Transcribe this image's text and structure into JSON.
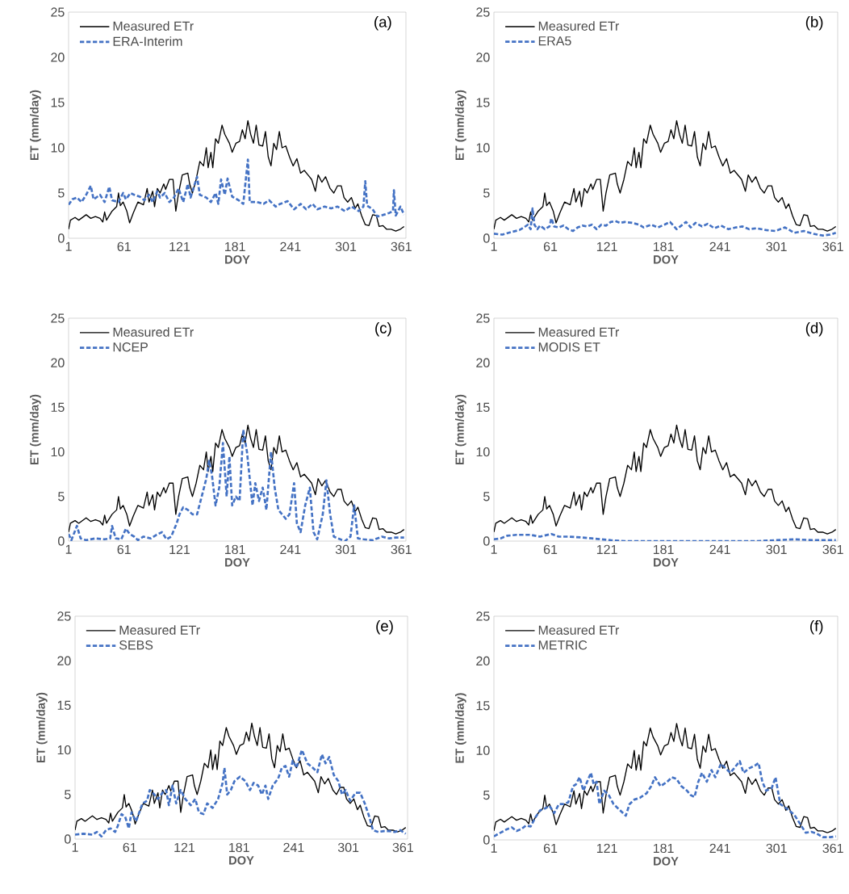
{
  "chart_data": [
    {
      "type": "line",
      "title": "(a)",
      "xlabel": "DOY",
      "ylabel": "ET (mm/day)",
      "xlim": [
        1,
        366
      ],
      "xticks": [
        1,
        61,
        121,
        181,
        241,
        301,
        361
      ],
      "ylim": [
        0,
        25
      ],
      "yticks": [
        0,
        5,
        10,
        15,
        20,
        25
      ],
      "legend": "top left",
      "series": [
        {
          "name": "Measured ETr",
          "color": "#000000",
          "line_style": "solid",
          "x": [
            1,
            3,
            8,
            12,
            20,
            25,
            30,
            35,
            38,
            40,
            42,
            48,
            53,
            55,
            57,
            60,
            64,
            67,
            71,
            76,
            82,
            86,
            88,
            92,
            94,
            97,
            100,
            104,
            106,
            110,
            114,
            117,
            120,
            124,
            130,
            132,
            135,
            139,
            143,
            147,
            150,
            152,
            155,
            157,
            160,
            163,
            167,
            170,
            175,
            178,
            182,
            186,
            189,
            192,
            195,
            198,
            201,
            204,
            207,
            211,
            214,
            217,
            220,
            223,
            226,
            229,
            232,
            236,
            240,
            244,
            248,
            252,
            256,
            260,
            264,
            268,
            271,
            275,
            279,
            284,
            288,
            292,
            296,
            299,
            303,
            307,
            311,
            314,
            318,
            322,
            326,
            330,
            334,
            337,
            341,
            345,
            350,
            355,
            360,
            364
          ],
          "values": [
            1.0,
            2.0,
            2.3,
            2.0,
            2.6,
            2.2,
            2.4,
            2.2,
            1.8,
            2.9,
            2.0,
            3.0,
            3.5,
            5.0,
            3.6,
            4.0,
            3.0,
            1.7,
            2.8,
            4.0,
            3.7,
            5.5,
            4.0,
            5.2,
            3.5,
            5.5,
            5.0,
            6.0,
            5.4,
            6.5,
            6.5,
            3.0,
            5.0,
            7.0,
            7.2,
            6.0,
            5.0,
            6.5,
            8.5,
            8.0,
            10.0,
            7.8,
            9.5,
            7.8,
            11.0,
            10.5,
            12.5,
            11.5,
            10.5,
            9.5,
            10.5,
            10.7,
            12.0,
            11.0,
            13.0,
            11.5,
            10.5,
            12.5,
            10.3,
            10.2,
            11.8,
            9.0,
            8.0,
            10.5,
            9.8,
            11.8,
            10.0,
            10.2,
            9.0,
            8.0,
            8.8,
            7.2,
            7.5,
            7.0,
            6.5,
            5.2,
            7.0,
            6.2,
            6.8,
            5.5,
            5.0,
            5.8,
            5.8,
            4.5,
            4.0,
            4.5,
            3.3,
            3.8,
            2.5,
            1.5,
            1.4,
            2.6,
            2.5,
            1.3,
            1.4,
            1.0,
            1.0,
            0.8,
            1.0,
            1.3
          ]
        },
        {
          "name": "ERA-Interim",
          "color": "#4472c4",
          "line_style": "dashed",
          "x": [
            1,
            5,
            10,
            15,
            20,
            25,
            28,
            35,
            40,
            45,
            48,
            55,
            60,
            63,
            68,
            72,
            78,
            83,
            88,
            92,
            97,
            100,
            105,
            110,
            115,
            120,
            125,
            130,
            133,
            140,
            143,
            150,
            155,
            160,
            163,
            166,
            170,
            173,
            178,
            185,
            190,
            195,
            197,
            205,
            212,
            218,
            225,
            230,
            238,
            245,
            252,
            258,
            265,
            270,
            278,
            285,
            292,
            300,
            307,
            315,
            320,
            322,
            324,
            330,
            335,
            342,
            348,
            352,
            353,
            355,
            360,
            364
          ],
          "values": [
            3.7,
            4.3,
            4.5,
            4.0,
            4.8,
            5.8,
            4.3,
            4.8,
            4.0,
            5.7,
            4.2,
            4.0,
            5.0,
            4.3,
            5.0,
            4.8,
            4.6,
            4.2,
            4.8,
            4.0,
            5.2,
            4.5,
            5.0,
            4.0,
            4.5,
            5.5,
            4.0,
            6.0,
            4.5,
            6.8,
            4.8,
            4.5,
            4.0,
            5.0,
            3.8,
            6.5,
            4.8,
            6.6,
            4.6,
            4.2,
            3.8,
            8.7,
            4.0,
            4.0,
            3.8,
            4.2,
            3.5,
            3.8,
            4.1,
            3.2,
            3.8,
            3.2,
            3.8,
            3.2,
            3.5,
            3.3,
            3.5,
            3.0,
            3.5,
            3.0,
            3.5,
            6.3,
            3.6,
            3.2,
            2.4,
            2.6,
            2.8,
            3.0,
            5.3,
            2.5,
            3.5,
            2.6
          ]
        }
      ]
    },
    {
      "type": "line",
      "title": "(b)",
      "xlabel": "DOY",
      "ylabel": "ET (mm/day)",
      "xlim": [
        1,
        366
      ],
      "xticks": [
        1,
        61,
        121,
        181,
        241,
        301,
        361
      ],
      "ylim": [
        0,
        25
      ],
      "yticks": [
        0,
        5,
        10,
        15,
        20,
        25
      ],
      "legend": "top left",
      "series": [
        {
          "name": "Measured ETr",
          "color": "#000000",
          "line_style": "solid",
          "x": [
            1,
            3,
            8,
            12,
            20,
            25,
            30,
            35,
            38,
            40,
            42,
            48,
            53,
            55,
            57,
            60,
            64,
            67,
            71,
            76,
            82,
            86,
            88,
            92,
            94,
            97,
            100,
            104,
            106,
            110,
            114,
            117,
            120,
            124,
            130,
            132,
            135,
            139,
            143,
            147,
            150,
            152,
            155,
            157,
            160,
            163,
            167,
            170,
            175,
            178,
            182,
            186,
            189,
            192,
            195,
            198,
            201,
            204,
            207,
            211,
            214,
            217,
            220,
            223,
            226,
            229,
            232,
            236,
            240,
            244,
            248,
            252,
            256,
            260,
            264,
            268,
            271,
            275,
            279,
            284,
            288,
            292,
            296,
            299,
            303,
            307,
            311,
            314,
            318,
            322,
            326,
            330,
            334,
            337,
            341,
            345,
            350,
            355,
            360,
            364
          ],
          "values": [
            1.0,
            2.0,
            2.3,
            2.0,
            2.6,
            2.2,
            2.4,
            2.2,
            1.8,
            2.9,
            2.0,
            3.0,
            3.5,
            5.0,
            3.6,
            4.0,
            3.0,
            1.7,
            2.8,
            4.0,
            3.7,
            5.5,
            4.0,
            5.2,
            3.5,
            5.5,
            5.0,
            6.0,
            5.4,
            6.5,
            6.5,
            3.0,
            5.0,
            7.0,
            7.2,
            6.0,
            5.0,
            6.5,
            8.5,
            8.0,
            10.0,
            7.8,
            9.5,
            7.8,
            11.0,
            10.5,
            12.5,
            11.5,
            10.5,
            9.5,
            10.5,
            10.7,
            12.0,
            11.0,
            13.0,
            11.5,
            10.5,
            12.5,
            10.3,
            10.2,
            11.8,
            9.0,
            8.0,
            10.5,
            9.8,
            11.8,
            10.0,
            10.2,
            9.0,
            8.0,
            8.8,
            7.2,
            7.5,
            7.0,
            6.5,
            5.2,
            7.0,
            6.2,
            6.8,
            5.5,
            5.0,
            5.8,
            5.8,
            4.5,
            4.0,
            4.5,
            3.3,
            3.8,
            2.5,
            1.5,
            1.4,
            2.6,
            2.5,
            1.3,
            1.4,
            1.0,
            1.0,
            0.8,
            1.0,
            1.3
          ]
        },
        {
          "name": "ERA5",
          "color": "#4472c4",
          "line_style": "dashed",
          "x": [
            1,
            10,
            20,
            28,
            33,
            37,
            40,
            42,
            44,
            47,
            50,
            55,
            60,
            62,
            65,
            70,
            75,
            80,
            85,
            90,
            95,
            100,
            105,
            110,
            115,
            120,
            125,
            130,
            135,
            140,
            148,
            155,
            160,
            168,
            175,
            182,
            188,
            195,
            200,
            205,
            210,
            215,
            222,
            228,
            235,
            242,
            250,
            258,
            265,
            272,
            280,
            290,
            300,
            310,
            320,
            330,
            340,
            350,
            358,
            364
          ],
          "values": [
            0.5,
            0.4,
            0.7,
            0.9,
            1.2,
            1.5,
            1.0,
            3.3,
            1.5,
            1.0,
            1.4,
            1.0,
            1.3,
            2.2,
            1.3,
            1.2,
            1.4,
            1.0,
            0.8,
            1.2,
            1.4,
            1.3,
            1.5,
            1.0,
            1.5,
            1.4,
            1.8,
            1.9,
            1.7,
            1.8,
            1.7,
            1.5,
            1.2,
            1.5,
            1.2,
            1.5,
            1.8,
            1.0,
            1.4,
            1.8,
            1.2,
            1.7,
            1.3,
            1.6,
            1.1,
            1.4,
            1.0,
            1.2,
            1.3,
            1.0,
            1.1,
            0.9,
            0.8,
            1.2,
            0.6,
            0.8,
            0.5,
            0.3,
            0.4,
            0.6
          ]
        }
      ]
    },
    {
      "type": "line",
      "title": "(c)",
      "xlabel": "DOY",
      "ylabel": "ET (mm/day)",
      "xlim": [
        1,
        366
      ],
      "xticks": [
        1,
        61,
        121,
        181,
        241,
        301,
        361
      ],
      "ylim": [
        0,
        25
      ],
      "yticks": [
        0,
        5,
        10,
        15,
        20,
        25
      ],
      "legend": "top left",
      "series": [
        {
          "name": "Measured ETr",
          "color": "#000000",
          "line_style": "solid",
          "x": [
            1,
            3,
            8,
            12,
            20,
            25,
            30,
            35,
            38,
            40,
            42,
            48,
            53,
            55,
            57,
            60,
            64,
            67,
            71,
            76,
            82,
            86,
            88,
            92,
            94,
            97,
            100,
            104,
            106,
            110,
            114,
            117,
            120,
            124,
            130,
            132,
            135,
            139,
            143,
            147,
            150,
            152,
            155,
            157,
            160,
            163,
            167,
            170,
            175,
            178,
            182,
            186,
            189,
            192,
            195,
            198,
            201,
            204,
            207,
            211,
            214,
            217,
            220,
            223,
            226,
            229,
            232,
            236,
            240,
            244,
            248,
            252,
            256,
            260,
            264,
            268,
            271,
            275,
            279,
            284,
            288,
            292,
            296,
            299,
            303,
            307,
            311,
            314,
            318,
            322,
            326,
            330,
            334,
            337,
            341,
            345,
            350,
            355,
            360,
            364
          ],
          "values": [
            1.0,
            2.0,
            2.3,
            2.0,
            2.6,
            2.2,
            2.4,
            2.2,
            1.8,
            2.9,
            2.0,
            3.0,
            3.5,
            5.0,
            3.6,
            4.0,
            3.0,
            1.7,
            2.8,
            4.0,
            3.7,
            5.5,
            4.0,
            5.2,
            3.5,
            5.5,
            5.0,
            6.0,
            5.4,
            6.5,
            6.5,
            3.0,
            5.0,
            7.0,
            7.2,
            6.0,
            5.0,
            6.5,
            8.5,
            8.0,
            10.0,
            7.8,
            9.5,
            7.8,
            11.0,
            10.5,
            12.5,
            11.5,
            10.5,
            9.5,
            10.5,
            10.7,
            12.0,
            11.0,
            13.0,
            11.5,
            10.5,
            12.5,
            10.3,
            10.2,
            11.8,
            9.0,
            8.0,
            10.5,
            9.8,
            11.8,
            10.0,
            10.2,
            9.0,
            8.0,
            8.8,
            7.2,
            7.5,
            7.0,
            6.5,
            5.2,
            7.0,
            6.2,
            6.8,
            5.5,
            5.0,
            5.8,
            5.8,
            4.5,
            4.0,
            4.5,
            3.3,
            3.8,
            2.5,
            1.5,
            1.4,
            2.6,
            2.5,
            1.3,
            1.4,
            1.0,
            1.0,
            0.8,
            1.0,
            1.3
          ]
        },
        {
          "name": "NCEP",
          "color": "#4472c4",
          "line_style": "dashed",
          "x": [
            1,
            4,
            10,
            14,
            20,
            30,
            40,
            46,
            48,
            52,
            58,
            63,
            67,
            72,
            76,
            82,
            90,
            96,
            102,
            107,
            112,
            118,
            121,
            125,
            130,
            135,
            140,
            145,
            150,
            153,
            156,
            160,
            164,
            168,
            172,
            175,
            178,
            182,
            186,
            190,
            194,
            197,
            200,
            203,
            207,
            211,
            215,
            220,
            224,
            228,
            232,
            236,
            240,
            245,
            248,
            252,
            257,
            262,
            266,
            270,
            276,
            280,
            284,
            288,
            295,
            300,
            306,
            310,
            314,
            320,
            330,
            340,
            348,
            355,
            364
          ],
          "values": [
            0.8,
            0.1,
            1.7,
            0.3,
            0.1,
            0.3,
            0.2,
            0.3,
            1.7,
            0.3,
            0.2,
            1.4,
            0.8,
            0.5,
            0.1,
            0.5,
            0.3,
            0.7,
            1.0,
            0.2,
            0.5,
            2.0,
            3.0,
            3.8,
            3.5,
            3.0,
            3.0,
            5.0,
            7.0,
            9.0,
            7.5,
            4.0,
            6.0,
            11.0,
            5.0,
            9.5,
            4.0,
            5.0,
            4.5,
            12.5,
            10.0,
            7.0,
            4.0,
            6.5,
            4.5,
            6.0,
            3.5,
            10.0,
            6.0,
            3.5,
            3.0,
            2.5,
            3.0,
            6.5,
            2.0,
            1.0,
            4.0,
            6.0,
            1.0,
            0.2,
            3.0,
            6.8,
            3.0,
            0.5,
            0.2,
            0.0,
            0.5,
            4.0,
            0.3,
            0.2,
            0.1,
            0.5,
            0.3,
            0.4,
            0.4
          ]
        }
      ]
    },
    {
      "type": "line",
      "title": "(d)",
      "xlabel": "DOY",
      "ylabel": "ET (mm/day)",
      "xlim": [
        1,
        366
      ],
      "xticks": [
        1,
        61,
        121,
        181,
        241,
        301,
        361
      ],
      "ylim": [
        0,
        25
      ],
      "yticks": [
        0,
        5,
        10,
        15,
        20,
        25
      ],
      "legend": "top left",
      "series": [
        {
          "name": "Measured ETr",
          "color": "#000000",
          "line_style": "solid",
          "x": [
            1,
            3,
            8,
            12,
            20,
            25,
            30,
            35,
            38,
            40,
            42,
            48,
            53,
            55,
            57,
            60,
            64,
            67,
            71,
            76,
            82,
            86,
            88,
            92,
            94,
            97,
            100,
            104,
            106,
            110,
            114,
            117,
            120,
            124,
            130,
            132,
            135,
            139,
            143,
            147,
            150,
            152,
            155,
            157,
            160,
            163,
            167,
            170,
            175,
            178,
            182,
            186,
            189,
            192,
            195,
            198,
            201,
            204,
            207,
            211,
            214,
            217,
            220,
            223,
            226,
            229,
            232,
            236,
            240,
            244,
            248,
            252,
            256,
            260,
            264,
            268,
            271,
            275,
            279,
            284,
            288,
            292,
            296,
            299,
            303,
            307,
            311,
            314,
            318,
            322,
            326,
            330,
            334,
            337,
            341,
            345,
            350,
            355,
            360,
            364
          ],
          "values": [
            1.0,
            2.0,
            2.3,
            2.0,
            2.6,
            2.2,
            2.4,
            2.2,
            1.8,
            2.9,
            2.0,
            3.0,
            3.5,
            5.0,
            3.6,
            4.0,
            3.0,
            1.7,
            2.8,
            4.0,
            3.7,
            5.5,
            4.0,
            5.2,
            3.5,
            5.5,
            5.0,
            6.0,
            5.4,
            6.5,
            6.5,
            3.0,
            5.0,
            7.0,
            7.2,
            6.0,
            5.0,
            6.5,
            8.5,
            8.0,
            10.0,
            7.8,
            9.5,
            7.8,
            11.0,
            10.5,
            12.5,
            11.5,
            10.5,
            9.5,
            10.5,
            10.7,
            12.0,
            11.0,
            13.0,
            11.5,
            10.5,
            12.5,
            10.3,
            10.2,
            11.8,
            9.0,
            8.0,
            10.5,
            9.8,
            11.8,
            10.0,
            10.2,
            9.0,
            8.0,
            8.8,
            7.2,
            7.5,
            7.0,
            6.5,
            5.2,
            7.0,
            6.2,
            6.8,
            5.5,
            5.0,
            5.8,
            5.8,
            4.5,
            4.0,
            4.5,
            3.3,
            3.8,
            2.5,
            1.5,
            1.4,
            2.6,
            2.5,
            1.3,
            1.4,
            1.0,
            1.0,
            0.8,
            1.0,
            1.3
          ]
        },
        {
          "name": "MODIS ET",
          "color": "#4472c4",
          "line_style": "dashed",
          "x": [
            1,
            8,
            15,
            25,
            40,
            50,
            62,
            70,
            80,
            95,
            105,
            115,
            125,
            140,
            160,
            200,
            240,
            280,
            300,
            320,
            340,
            364
          ],
          "values": [
            0.2,
            0.3,
            0.6,
            0.7,
            0.7,
            0.5,
            0.8,
            0.5,
            0.5,
            0.4,
            0.3,
            0.2,
            0.1,
            0.0,
            0.0,
            0.0,
            0.0,
            0.0,
            0.1,
            0.2,
            0.1,
            0.1
          ]
        }
      ]
    },
    {
      "type": "line",
      "title": "(e)",
      "xlabel": "DOY",
      "ylabel": "ET (mm/day)",
      "xlim": [
        1,
        366
      ],
      "xticks": [
        1,
        61,
        121,
        181,
        241,
        301,
        361
      ],
      "ylim": [
        0,
        25
      ],
      "yticks": [
        0,
        5,
        10,
        15,
        20,
        25
      ],
      "legend": "top left",
      "series": [
        {
          "name": "Measured ETr",
          "color": "#000000",
          "line_style": "solid",
          "x": [
            1,
            3,
            8,
            12,
            20,
            25,
            30,
            35,
            38,
            40,
            42,
            48,
            53,
            55,
            57,
            60,
            64,
            67,
            71,
            76,
            82,
            86,
            88,
            92,
            94,
            97,
            100,
            104,
            106,
            110,
            114,
            117,
            120,
            124,
            130,
            132,
            135,
            139,
            143,
            147,
            150,
            152,
            155,
            157,
            160,
            163,
            167,
            170,
            175,
            178,
            182,
            186,
            189,
            192,
            195,
            198,
            201,
            204,
            207,
            211,
            214,
            217,
            220,
            223,
            226,
            229,
            232,
            236,
            240,
            244,
            248,
            252,
            256,
            260,
            264,
            268,
            271,
            275,
            279,
            284,
            288,
            292,
            296,
            299,
            303,
            307,
            311,
            314,
            318,
            322,
            326,
            330,
            334,
            337,
            341,
            345,
            350,
            355,
            360,
            364
          ],
          "values": [
            1.0,
            2.0,
            2.3,
            2.0,
            2.6,
            2.2,
            2.4,
            2.2,
            1.8,
            2.9,
            2.0,
            3.0,
            3.5,
            5.0,
            3.6,
            4.0,
            3.0,
            1.7,
            2.8,
            4.0,
            3.7,
            5.5,
            4.0,
            5.2,
            3.5,
            5.5,
            5.0,
            6.0,
            5.4,
            6.5,
            6.5,
            3.0,
            5.0,
            7.0,
            7.2,
            6.0,
            5.0,
            6.5,
            8.5,
            8.0,
            10.0,
            7.8,
            9.5,
            7.8,
            11.0,
            10.5,
            12.5,
            11.5,
            10.5,
            9.5,
            10.5,
            10.7,
            12.0,
            11.0,
            13.0,
            11.5,
            10.5,
            12.5,
            10.3,
            10.2,
            11.8,
            9.0,
            8.0,
            10.5,
            9.8,
            11.8,
            10.0,
            10.2,
            9.0,
            8.0,
            8.8,
            7.2,
            7.5,
            7.0,
            6.5,
            5.2,
            7.0,
            6.2,
            6.8,
            5.5,
            5.0,
            5.8,
            5.8,
            4.5,
            4.0,
            4.5,
            3.3,
            3.8,
            2.5,
            1.5,
            1.4,
            2.6,
            2.5,
            1.3,
            1.4,
            1.0,
            1.0,
            0.8,
            1.0,
            1.3
          ]
        },
        {
          "name": "SEBS",
          "color": "#4472c4",
          "line_style": "dashed",
          "x": [
            1,
            10,
            20,
            25,
            30,
            35,
            40,
            45,
            48,
            52,
            56,
            60,
            63,
            68,
            75,
            80,
            83,
            88,
            92,
            97,
            101,
            104,
            108,
            112,
            117,
            122,
            128,
            133,
            137,
            142,
            146,
            152,
            158,
            163,
            165,
            168,
            172,
            176,
            182,
            188,
            193,
            197,
            202,
            206,
            210,
            213,
            218,
            224,
            228,
            232,
            236,
            240,
            244,
            250,
            256,
            262,
            267,
            272,
            276,
            280,
            285,
            290,
            294,
            298,
            303,
            309,
            314,
            319,
            324,
            328,
            334,
            340,
            346,
            352,
            358,
            364
          ],
          "values": [
            0.5,
            0.6,
            0.5,
            0.8,
            0.3,
            1.0,
            1.2,
            0.8,
            1.5,
            2.8,
            2.5,
            1.2,
            3.0,
            2.0,
            4.0,
            4.3,
            5.5,
            5.0,
            4.5,
            5.2,
            5.5,
            3.8,
            6.0,
            4.0,
            5.5,
            4.5,
            3.8,
            4.5,
            3.0,
            2.8,
            4.0,
            3.5,
            4.5,
            6.3,
            8.0,
            5.0,
            5.5,
            6.5,
            7.0,
            6.5,
            5.5,
            6.3,
            6.0,
            5.0,
            6.0,
            4.5,
            6.0,
            6.8,
            8.0,
            8.2,
            7.0,
            8.8,
            8.0,
            10.0,
            8.5,
            8.0,
            7.5,
            9.5,
            8.5,
            9.2,
            7.2,
            6.5,
            5.0,
            5.5,
            4.3,
            5.2,
            5.2,
            4.0,
            2.5,
            1.0,
            0.8,
            0.9,
            0.9,
            0.8,
            1.0,
            0.6
          ]
        }
      ]
    },
    {
      "type": "line",
      "title": "(f)",
      "xlabel": "DOY",
      "ylabel": "ET (mm/day)",
      "xlim": [
        1,
        366
      ],
      "xticks": [
        1,
        61,
        121,
        181,
        241,
        301,
        361
      ],
      "ylim": [
        0,
        25
      ],
      "yticks": [
        0,
        5,
        10,
        15,
        20,
        25
      ],
      "legend": "top left",
      "series": [
        {
          "name": "Measured ETr",
          "color": "#000000",
          "line_style": "solid",
          "x": [
            1,
            3,
            8,
            12,
            20,
            25,
            30,
            35,
            38,
            40,
            42,
            48,
            53,
            55,
            57,
            60,
            64,
            67,
            71,
            76,
            82,
            86,
            88,
            92,
            94,
            97,
            100,
            104,
            106,
            110,
            114,
            117,
            120,
            124,
            130,
            132,
            135,
            139,
            143,
            147,
            150,
            152,
            155,
            157,
            160,
            163,
            167,
            170,
            175,
            178,
            182,
            186,
            189,
            192,
            195,
            198,
            201,
            204,
            207,
            211,
            214,
            217,
            220,
            223,
            226,
            229,
            232,
            236,
            240,
            244,
            248,
            252,
            256,
            260,
            264,
            268,
            271,
            275,
            279,
            284,
            288,
            292,
            296,
            299,
            303,
            307,
            311,
            314,
            318,
            322,
            326,
            330,
            334,
            337,
            341,
            345,
            350,
            355,
            360,
            364
          ],
          "values": [
            1.0,
            2.0,
            2.3,
            2.0,
            2.6,
            2.2,
            2.4,
            2.2,
            1.8,
            2.9,
            2.0,
            3.0,
            3.5,
            5.0,
            3.6,
            4.0,
            3.0,
            1.7,
            2.8,
            4.0,
            3.7,
            5.5,
            4.0,
            5.2,
            3.5,
            5.5,
            5.0,
            6.0,
            5.4,
            6.5,
            6.5,
            3.0,
            5.0,
            7.0,
            7.2,
            6.0,
            5.0,
            6.5,
            8.5,
            8.0,
            10.0,
            7.8,
            9.5,
            7.8,
            11.0,
            10.5,
            12.5,
            11.5,
            10.5,
            9.5,
            10.5,
            10.7,
            12.0,
            11.0,
            13.0,
            11.5,
            10.5,
            12.5,
            10.3,
            10.2,
            11.8,
            9.0,
            8.0,
            10.5,
            9.8,
            11.8,
            10.0,
            10.2,
            9.0,
            8.0,
            8.8,
            7.2,
            7.5,
            7.0,
            6.5,
            5.2,
            7.0,
            6.2,
            6.8,
            5.5,
            5.0,
            5.8,
            5.8,
            4.5,
            4.0,
            4.5,
            3.3,
            3.8,
            2.5,
            1.5,
            1.4,
            2.6,
            2.5,
            1.3,
            1.4,
            1.0,
            1.0,
            0.8,
            1.0,
            1.3
          ]
        },
        {
          "name": "METRIC",
          "color": "#4472c4",
          "line_style": "dashed",
          "x": [
            1,
            8,
            15,
            20,
            25,
            30,
            35,
            40,
            45,
            50,
            55,
            60,
            65,
            70,
            75,
            80,
            85,
            88,
            92,
            96,
            100,
            104,
            107,
            110,
            113,
            118,
            123,
            128,
            133,
            138,
            141,
            145,
            150,
            156,
            163,
            168,
            172,
            178,
            185,
            190,
            195,
            200,
            206,
            210,
            214,
            218,
            222,
            227,
            232,
            236,
            242,
            247,
            252,
            256,
            262,
            266,
            272,
            278,
            282,
            286,
            290,
            296,
            300,
            305,
            312,
            320,
            326,
            332,
            338,
            344,
            350,
            358,
            364
          ],
          "values": [
            0.4,
            0.8,
            1.2,
            1.4,
            1.0,
            1.2,
            1.6,
            1.5,
            2.5,
            3.3,
            3.5,
            3.8,
            3.0,
            4.0,
            4.0,
            4.2,
            6.0,
            6.2,
            7.0,
            5.5,
            6.5,
            7.5,
            6.2,
            6.5,
            4.0,
            5.5,
            5.0,
            4.0,
            3.5,
            3.0,
            2.7,
            4.0,
            4.5,
            4.7,
            5.2,
            6.0,
            7.0,
            6.0,
            6.5,
            7.0,
            6.8,
            6.0,
            5.5,
            5.0,
            4.8,
            6.5,
            7.5,
            6.5,
            7.8,
            7.0,
            8.5,
            8.0,
            7.5,
            8.0,
            8.8,
            7.5,
            8.0,
            8.3,
            8.6,
            6.5,
            5.5,
            5.8,
            7.0,
            4.0,
            3.5,
            2.8,
            1.8,
            0.8,
            0.9,
            0.7,
            0.3,
            0.3,
            0.4
          ]
        }
      ]
    }
  ]
}
